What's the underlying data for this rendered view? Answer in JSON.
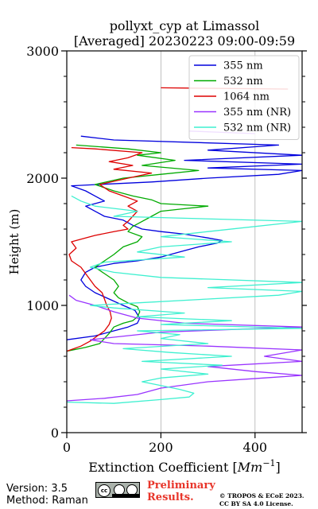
{
  "chart_data": {
    "type": "line",
    "title": "pollyxt_cyp at Limassol",
    "subtitle": "[Averaged] 20230223 09:00-09:59",
    "xlabel": "Extinction Coefficient [$Mm^{-1}$]",
    "xlabel_text": "Extinction Coefficient [",
    "xlabel_unit": "Mm",
    "xlabel_exp": "−1",
    "xlabel_end": "]",
    "ylabel": "Height (m)",
    "xlim": [
      0,
      500
    ],
    "ylim": [
      0,
      3000
    ],
    "xticks": [
      "0",
      "200",
      "400"
    ],
    "xtick_values": [
      0,
      200,
      400
    ],
    "yticks": [
      "0",
      "1000",
      "2000",
      "3000"
    ],
    "ytick_values": [
      0,
      1000,
      2000,
      3000
    ],
    "x_grid": true,
    "legend_position": "top-right",
    "series": [
      {
        "name": "355 nm",
        "color": "#0000dd",
        "points": [
          [
            0,
            730
          ],
          [
            60,
            760
          ],
          [
            100,
            800
          ],
          [
            130,
            830
          ],
          [
            150,
            860
          ],
          [
            155,
            900
          ],
          [
            145,
            960
          ],
          [
            120,
            1000
          ],
          [
            90,
            1050
          ],
          [
            60,
            1100
          ],
          [
            40,
            1150
          ],
          [
            30,
            1200
          ],
          [
            40,
            1260
          ],
          [
            60,
            1300
          ],
          [
            100,
            1330
          ],
          [
            150,
            1350
          ],
          [
            200,
            1380
          ],
          [
            240,
            1420
          ],
          [
            280,
            1460
          ],
          [
            320,
            1490
          ],
          [
            330,
            1510
          ],
          [
            300,
            1530
          ],
          [
            250,
            1560
          ],
          [
            200,
            1580
          ],
          [
            160,
            1600
          ],
          [
            140,
            1630
          ],
          [
            120,
            1670
          ],
          [
            80,
            1700
          ],
          [
            60,
            1740
          ],
          [
            40,
            1780
          ],
          [
            80,
            1820
          ],
          [
            60,
            1860
          ],
          [
            40,
            1900
          ],
          [
            10,
            1940
          ],
          [
            180,
            1970
          ],
          [
            300,
            2000
          ],
          [
            450,
            2030
          ],
          [
            500,
            2060
          ],
          [
            300,
            2080
          ],
          [
            500,
            2110
          ],
          [
            250,
            2140
          ],
          [
            500,
            2180
          ],
          [
            300,
            2220
          ],
          [
            450,
            2260
          ],
          [
            100,
            2300
          ],
          [
            30,
            2330
          ]
        ]
      },
      {
        "name": "532 nm",
        "color": "#00aa00",
        "points": [
          [
            0,
            640
          ],
          [
            40,
            670
          ],
          [
            70,
            700
          ],
          [
            80,
            740
          ],
          [
            90,
            780
          ],
          [
            100,
            830
          ],
          [
            120,
            860
          ],
          [
            140,
            880
          ],
          [
            150,
            910
          ],
          [
            155,
            950
          ],
          [
            150,
            990
          ],
          [
            130,
            1020
          ],
          [
            110,
            1060
          ],
          [
            100,
            1100
          ],
          [
            110,
            1150
          ],
          [
            100,
            1200
          ],
          [
            80,
            1250
          ],
          [
            60,
            1300
          ],
          [
            80,
            1350
          ],
          [
            100,
            1400
          ],
          [
            120,
            1460
          ],
          [
            150,
            1500
          ],
          [
            160,
            1540
          ],
          [
            130,
            1580
          ],
          [
            140,
            1620
          ],
          [
            160,
            1660
          ],
          [
            180,
            1700
          ],
          [
            200,
            1740
          ],
          [
            250,
            1760
          ],
          [
            300,
            1780
          ],
          [
            200,
            1800
          ],
          [
            180,
            1830
          ],
          [
            140,
            1860
          ],
          [
            100,
            1900
          ],
          [
            60,
            1950
          ],
          [
            120,
            2000
          ],
          [
            200,
            2030
          ],
          [
            280,
            2060
          ],
          [
            160,
            2100
          ],
          [
            230,
            2140
          ],
          [
            150,
            2180
          ],
          [
            200,
            2200
          ],
          [
            130,
            2230
          ],
          [
            20,
            2260
          ]
        ]
      },
      {
        "name": "1064 nm",
        "color": "#dd0000",
        "points": [
          [
            0,
            640
          ],
          [
            30,
            680
          ],
          [
            50,
            720
          ],
          [
            65,
            760
          ],
          [
            80,
            800
          ],
          [
            90,
            850
          ],
          [
            95,
            900
          ],
          [
            92,
            950
          ],
          [
            85,
            1000
          ],
          [
            80,
            1050
          ],
          [
            75,
            1100
          ],
          [
            60,
            1150
          ],
          [
            50,
            1200
          ],
          [
            40,
            1250
          ],
          [
            30,
            1300
          ],
          [
            10,
            1350
          ],
          [
            5,
            1400
          ],
          [
            20,
            1450
          ],
          [
            10,
            1500
          ],
          [
            60,
            1550
          ],
          [
            100,
            1580
          ],
          [
            130,
            1600
          ],
          [
            120,
            1630
          ],
          [
            130,
            1660
          ],
          [
            140,
            1700
          ],
          [
            150,
            1740
          ],
          [
            130,
            1780
          ],
          [
            150,
            1820
          ],
          [
            120,
            1860
          ],
          [
            90,
            1900
          ],
          [
            70,
            1950
          ],
          [
            130,
            2000
          ],
          [
            180,
            2040
          ],
          [
            100,
            2070
          ],
          [
            140,
            2100
          ],
          [
            90,
            2130
          ],
          [
            130,
            2160
          ],
          [
            160,
            2200
          ],
          [
            60,
            2230
          ],
          [
            10,
            2240
          ]
        ],
        "side_line": [
          [
            200,
            2710
          ],
          [
            470,
            2700
          ]
        ]
      },
      {
        "name": "355 nm (NR)",
        "color": "#9933ff",
        "points": [
          [
            0,
            250
          ],
          [
            80,
            270
          ],
          [
            150,
            300
          ],
          [
            200,
            350
          ],
          [
            300,
            400
          ],
          [
            420,
            430
          ],
          [
            500,
            450
          ],
          [
            400,
            480
          ],
          [
            300,
            520
          ],
          [
            500,
            560
          ],
          [
            420,
            600
          ],
          [
            500,
            650
          ],
          [
            300,
            680
          ],
          [
            100,
            700
          ],
          [
            50,
            730
          ],
          [
            200,
            790
          ],
          [
            350,
            810
          ],
          [
            500,
            830
          ],
          [
            250,
            860
          ],
          [
            150,
            900
          ],
          [
            100,
            950
          ],
          [
            60,
            1000
          ],
          [
            20,
            1040
          ],
          [
            5,
            1080
          ]
        ],
        "side_line": [
          [
            260,
            2370
          ],
          [
            400,
            2350
          ]
        ]
      },
      {
        "name": "532 nm (NR)",
        "color": "#3ff0d0",
        "points": [
          [
            0,
            240
          ],
          [
            100,
            230
          ],
          [
            200,
            260
          ],
          [
            260,
            280
          ],
          [
            270,
            310
          ],
          [
            240,
            340
          ],
          [
            200,
            370
          ],
          [
            160,
            400
          ],
          [
            200,
            430
          ],
          [
            300,
            460
          ],
          [
            200,
            500
          ],
          [
            330,
            530
          ],
          [
            160,
            560
          ],
          [
            350,
            600
          ],
          [
            220,
            630
          ],
          [
            120,
            660
          ],
          [
            300,
            700
          ],
          [
            200,
            740
          ],
          [
            240,
            770
          ],
          [
            150,
            800
          ],
          [
            500,
            820
          ],
          [
            200,
            850
          ],
          [
            350,
            880
          ],
          [
            150,
            910
          ],
          [
            250,
            940
          ],
          [
            100,
            980
          ],
          [
            50,
            1000
          ],
          [
            150,
            1020
          ],
          [
            300,
            1050
          ],
          [
            450,
            1080
          ],
          [
            500,
            1110
          ],
          [
            300,
            1140
          ],
          [
            500,
            1180
          ],
          [
            200,
            1220
          ],
          [
            100,
            1260
          ],
          [
            50,
            1300
          ],
          [
            80,
            1340
          ],
          [
            250,
            1380
          ],
          [
            150,
            1420
          ],
          [
            200,
            1460
          ],
          [
            350,
            1500
          ],
          [
            200,
            1540
          ],
          [
            300,
            1580
          ],
          [
            500,
            1660
          ],
          [
            100,
            1700
          ],
          [
            150,
            1740
          ],
          [
            60,
            1780
          ],
          [
            30,
            1820
          ],
          [
            10,
            1860
          ]
        ]
      }
    ]
  },
  "footer": {
    "version": "Version: 3.5",
    "method": "Method: Raman",
    "preliminary_line1": "Preliminary",
    "preliminary_line2": "Results.",
    "copyright_line1": "© TROPOS & ECoE 2023.",
    "copyright_line2": "CC BY SA 4.0 License."
  }
}
